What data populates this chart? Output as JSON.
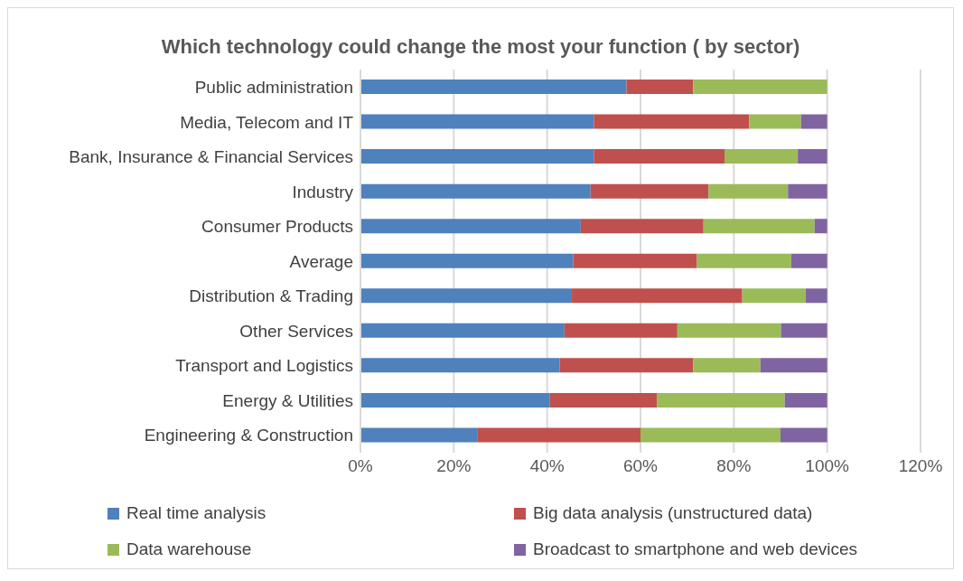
{
  "chart_data": {
    "type": "bar",
    "orientation": "horizontal",
    "stacked": true,
    "title": "Which technology could change the most your function ( by sector)",
    "categories": [
      "Public administration",
      "Media, Telecom and IT",
      "Bank, Insurance & Financial Services",
      "Industry",
      "Consumer Products",
      "Average",
      "Distribution & Trading",
      "Other Services",
      "Transport and Logistics",
      "Energy & Utilities",
      "Engineering & Construction"
    ],
    "series": [
      {
        "name": "Real time analysis",
        "color": "#4f81bd",
        "values": [
          57,
          50,
          50,
          49.3,
          47.2,
          45.6,
          45.3,
          43.7,
          42.7,
          40.6,
          25
        ]
      },
      {
        "name": "Big data analysis (unstructured data)",
        "color": "#c0504d",
        "values": [
          14.3,
          33.3,
          28,
          25.3,
          26.3,
          26.5,
          36.5,
          24.2,
          28.6,
          22.9,
          35
        ]
      },
      {
        "name": "Data warehouse",
        "color": "#9bbb59",
        "values": [
          28.7,
          11.1,
          15.7,
          17,
          23.8,
          20.2,
          13.6,
          22.2,
          14.4,
          27.4,
          30
        ]
      },
      {
        "name": "Broadcast to smartphone and web devices",
        "color": "#8064a2",
        "values": [
          0,
          5.6,
          6.3,
          8.4,
          2.7,
          7.7,
          4.6,
          9.9,
          14.3,
          9.1,
          10
        ]
      }
    ],
    "xlim": [
      0,
      120
    ],
    "xticks": [
      {
        "value": 0,
        "label": "0%"
      },
      {
        "value": 20,
        "label": "20%"
      },
      {
        "value": 40,
        "label": "40%"
      },
      {
        "value": 60,
        "label": "60%"
      },
      {
        "value": 80,
        "label": "80%"
      },
      {
        "value": 100,
        "label": "100%"
      },
      {
        "value": 120,
        "label": "120%"
      }
    ],
    "grid": "x",
    "legend": "bottom"
  }
}
